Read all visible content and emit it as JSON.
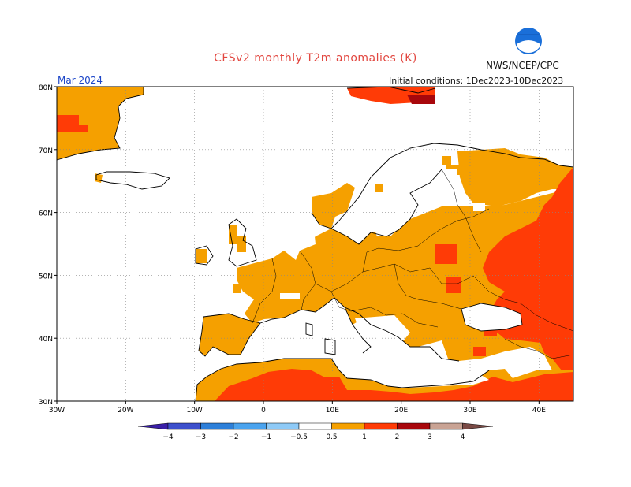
{
  "header": {
    "title": "CFSv2 monthly T2m anomalies (K)",
    "agency": "NWS/NCEP/CPC",
    "logo_text": "NOAA",
    "month": "Mar 2024",
    "initial_conditions": "Initial conditions: 1Dec2023-10Dec2023"
  },
  "map": {
    "lon_range": [
      -30,
      45
    ],
    "lat_range": [
      30,
      80
    ],
    "lat_labels": [
      "30N",
      "40N",
      "50N",
      "60N",
      "70N",
      "80N"
    ],
    "lon_labels": [
      "30W",
      "20W",
      "10W",
      "0",
      "10E",
      "20E",
      "30E",
      "40E"
    ],
    "grid": "dotted",
    "anomaly_regions": [
      {
        "name": "greenland",
        "category": "0.5-1"
      },
      {
        "name": "central-europe",
        "category": "0.5-1"
      },
      {
        "name": "iberia-south",
        "category": "0.5-1"
      },
      {
        "name": "north-africa",
        "category": "1-2"
      },
      {
        "name": "western-russia",
        "category": "1-2"
      },
      {
        "name": "svalbard",
        "category": "1-2"
      },
      {
        "name": "svalbard-east",
        "category": "2-3"
      }
    ]
  },
  "legend": {
    "labels": [
      "−4",
      "−3",
      "−2",
      "−1",
      "−0.5",
      "0.5",
      "1",
      "2",
      "3",
      "4"
    ],
    "colors": [
      "#3a1fa8",
      "#3c4fcc",
      "#2d7fd9",
      "#4aa3ee",
      "#8ecaf7",
      "#ffffff",
      "#f5a000",
      "#ff3b06",
      "#a8070c",
      "#c9a394",
      "#7a4a45"
    ]
  }
}
